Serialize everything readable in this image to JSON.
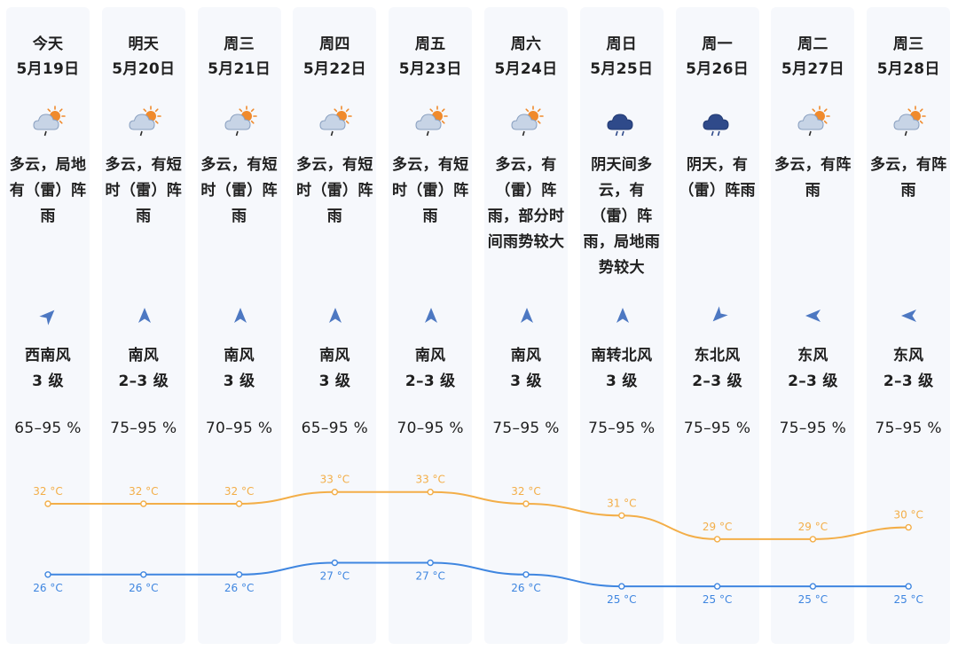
{
  "colors": {
    "high": "#f3ae48",
    "low": "#3f86e0",
    "column_bg": "#f6f8fc",
    "arrow": "#4d78c2"
  },
  "days": [
    {
      "weekday": "今天",
      "date": "5月19日",
      "icon": "partly-cloudy-rain-icon",
      "desc": [
        "多云，局地",
        "有（雷）阵",
        "雨"
      ],
      "wind_dir": "西南风",
      "wind_angle": 45,
      "wind_level": "3 级",
      "humidity": "65–95 %",
      "high": 32,
      "high_label": "32 °C",
      "low": 26,
      "low_label": "26 °C"
    },
    {
      "weekday": "明天",
      "date": "5月20日",
      "icon": "partly-cloudy-rain-icon",
      "desc": [
        "多云，有短",
        "时（雷）阵",
        "雨"
      ],
      "wind_dir": "南风",
      "wind_angle": 0,
      "wind_level": "2–3 级",
      "humidity": "75–95 %",
      "high": 32,
      "high_label": "32 °C",
      "low": 26,
      "low_label": "26 °C"
    },
    {
      "weekday": "周三",
      "date": "5月21日",
      "icon": "partly-cloudy-rain-icon",
      "desc": [
        "多云，有短",
        "时（雷）阵",
        "雨"
      ],
      "wind_dir": "南风",
      "wind_angle": 0,
      "wind_level": "3 级",
      "humidity": "70–95 %",
      "high": 32,
      "high_label": "32 °C",
      "low": 26,
      "low_label": "26 °C"
    },
    {
      "weekday": "周四",
      "date": "5月22日",
      "icon": "partly-cloudy-rain-icon",
      "desc": [
        "多云，有短",
        "时（雷）阵",
        "雨"
      ],
      "wind_dir": "南风",
      "wind_angle": 0,
      "wind_level": "3 级",
      "humidity": "65–95 %",
      "high": 33,
      "high_label": "33 °C",
      "low": 27,
      "low_label": "27 °C"
    },
    {
      "weekday": "周五",
      "date": "5月23日",
      "icon": "partly-cloudy-rain-icon",
      "desc": [
        "多云，有短",
        "时（雷）阵",
        "雨"
      ],
      "wind_dir": "南风",
      "wind_angle": 0,
      "wind_level": "2–3 级",
      "humidity": "70–95 %",
      "high": 33,
      "high_label": "33 °C",
      "low": 27,
      "low_label": "27 °C"
    },
    {
      "weekday": "周六",
      "date": "5月24日",
      "icon": "partly-cloudy-rain-icon",
      "desc": [
        "多云，有",
        "（雷）阵",
        "雨，部分时",
        "间雨势较大"
      ],
      "wind_dir": "南风",
      "wind_angle": 0,
      "wind_level": "3 级",
      "humidity": "75–95 %",
      "high": 32,
      "high_label": "32 °C",
      "low": 26,
      "low_label": "26 °C"
    },
    {
      "weekday": "周日",
      "date": "5月25日",
      "icon": "dark-cloud-rain-icon",
      "desc": [
        "阴天间多",
        "云，有",
        "（雷）阵",
        "雨，局地雨",
        "势较大"
      ],
      "wind_dir": "南转北风",
      "wind_angle": 0,
      "wind_level": "3 级",
      "humidity": "75–95 %",
      "high": 31,
      "high_label": "31 °C",
      "low": 25,
      "low_label": "25 °C"
    },
    {
      "weekday": "周一",
      "date": "5月26日",
      "icon": "dark-cloud-rain-icon",
      "desc": [
        "阴天，有",
        "（雷）阵雨"
      ],
      "wind_dir": "东北风",
      "wind_angle": -135,
      "wind_level": "2–3 级",
      "humidity": "75–95 %",
      "high": 29,
      "high_label": "29 °C",
      "low": 25,
      "low_label": "25 °C"
    },
    {
      "weekday": "周二",
      "date": "5月27日",
      "icon": "partly-cloudy-rain-icon",
      "desc": [
        "多云，有阵",
        "雨"
      ],
      "wind_dir": "东风",
      "wind_angle": -90,
      "wind_level": "2–3 级",
      "humidity": "75–95 %",
      "high": 29,
      "high_label": "29 °C",
      "low": 25,
      "low_label": "25 °C"
    },
    {
      "weekday": "周三",
      "date": "5月28日",
      "icon": "partly-cloudy-rain-icon",
      "desc": [
        "多云，有阵",
        "雨"
      ],
      "wind_dir": "东风",
      "wind_angle": -90,
      "wind_level": "2–3 级",
      "humidity": "75–95 %",
      "high": 30,
      "high_label": "30 °C",
      "low": 25,
      "low_label": "25 °C"
    }
  ]
}
